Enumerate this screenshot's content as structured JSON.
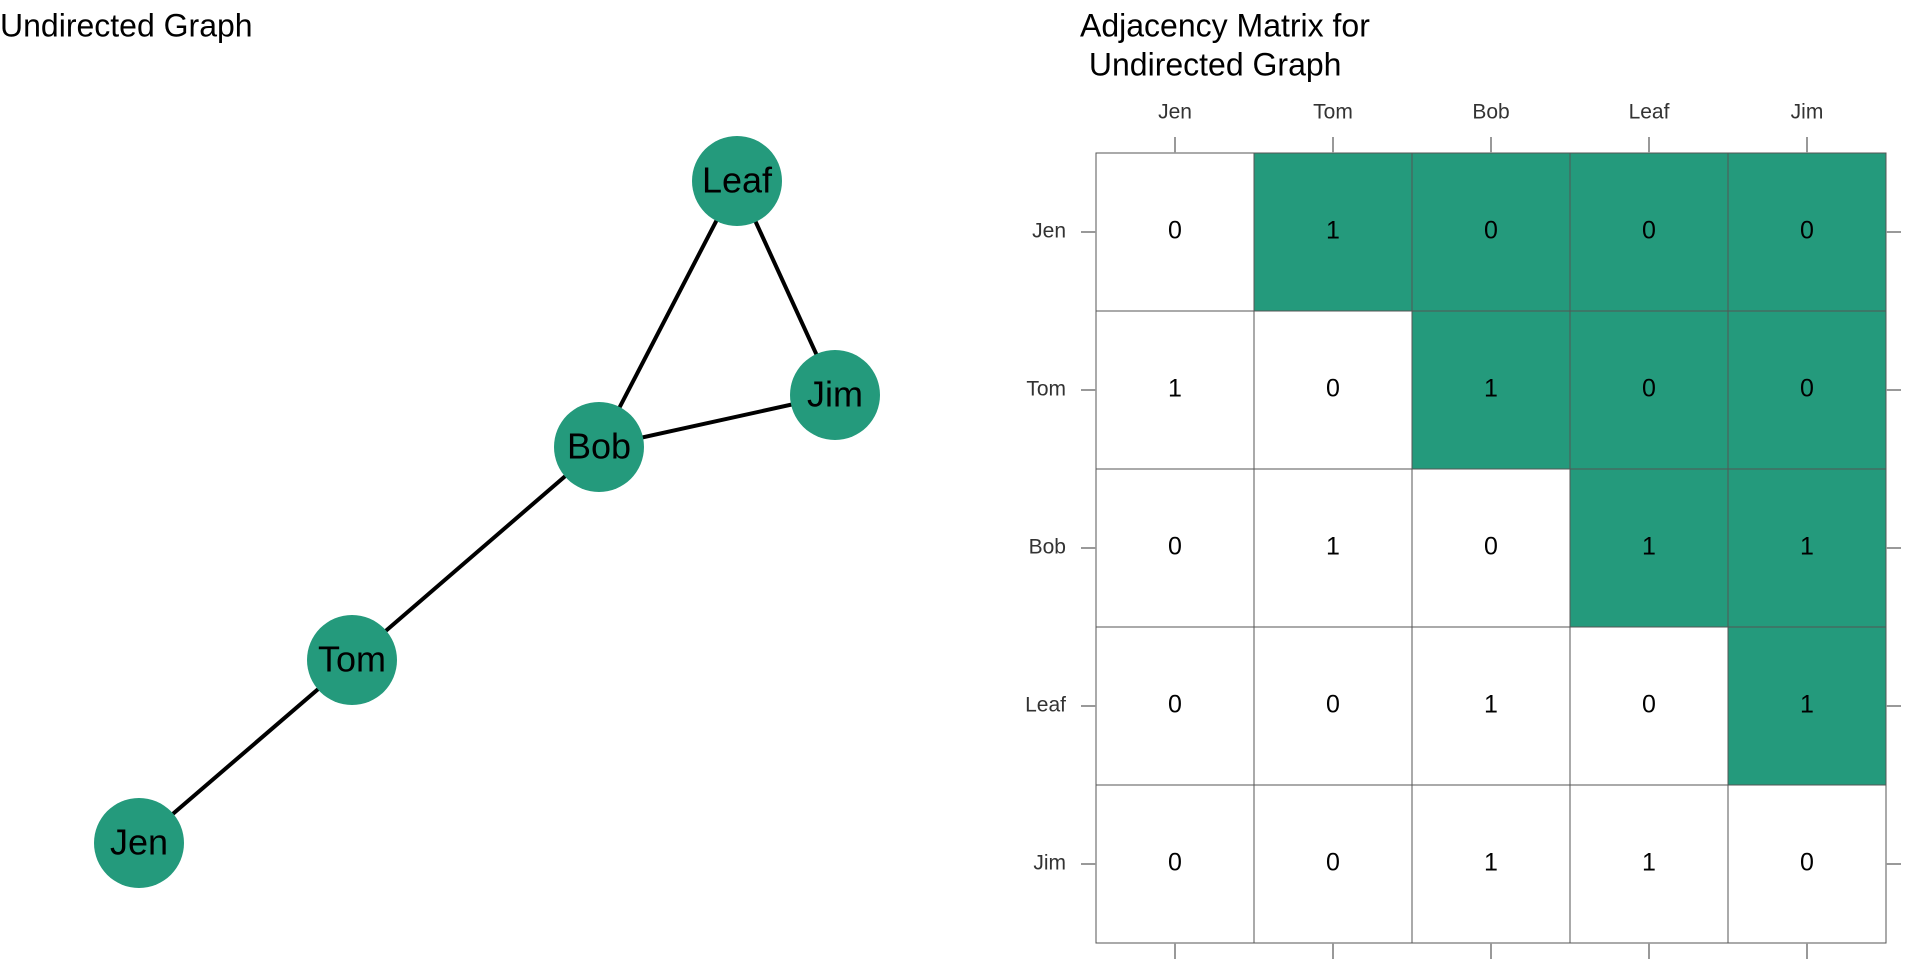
{
  "graph": {
    "title": "Undirected Graph",
    "nodes": [
      {
        "label": "Jen"
      },
      {
        "label": "Tom"
      },
      {
        "label": "Bob"
      },
      {
        "label": "Leaf"
      },
      {
        "label": "Jim"
      }
    ]
  },
  "matrix": {
    "title_lines": [
      "Adjacency Matrix for",
      " Undirected Graph"
    ],
    "columns": [
      "Jen",
      "Tom",
      "Bob",
      "Leaf",
      "Jim"
    ],
    "rows": [
      "Jen",
      "Tom",
      "Bob",
      "Leaf",
      "Jim"
    ],
    "cells": [
      [
        0,
        1,
        0,
        0,
        0
      ],
      [
        1,
        0,
        1,
        0,
        0
      ],
      [
        0,
        1,
        0,
        1,
        1
      ],
      [
        0,
        0,
        1,
        0,
        1
      ],
      [
        0,
        0,
        1,
        1,
        0
      ]
    ]
  }
}
